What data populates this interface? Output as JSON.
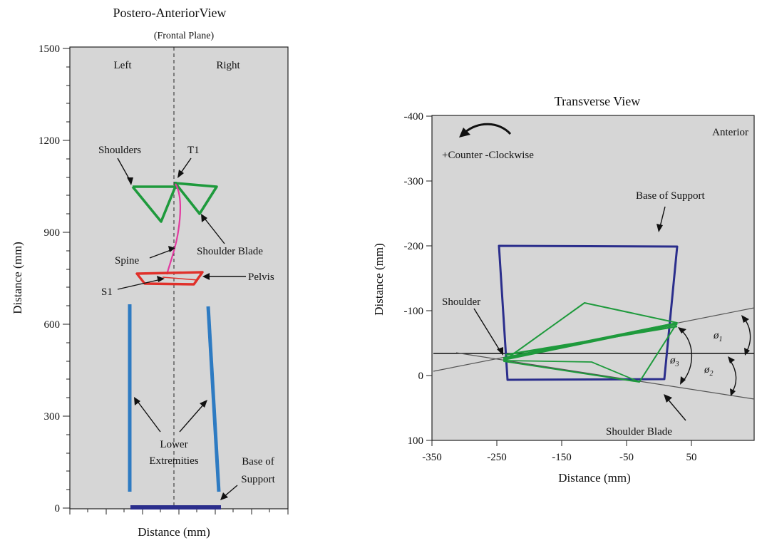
{
  "left_panel": {
    "title": "Postero-AnteriorView",
    "subtitle": "(Frontal Plane)",
    "side_left": "Left",
    "side_right": "Right",
    "y_label": "Distance (mm)",
    "x_label": "Distance (mm)",
    "y_ticks": [
      "1500",
      "1200",
      "900",
      "600",
      "300",
      "0"
    ],
    "labels": {
      "shoulders": "Shoulders",
      "t1": "T1",
      "spine": "Spine",
      "shoulder_blade": "Shoulder Blade",
      "s1": "S1",
      "pelvis": "Pelvis",
      "lower_ext_1": "Lower",
      "lower_ext_2": "Extremities",
      "base_1": "Base of",
      "base_2": "Support"
    }
  },
  "right_panel": {
    "title": "Transverse View",
    "anterior": "Anterior",
    "rotation": "+Counter -Clockwise",
    "base_of_support": "Base of Support",
    "shoulder": "Shoulder",
    "shoulder_blade": "Shoulder Blade",
    "phi": "ø",
    "phi_1_sub": "1",
    "phi_2_sub": "2",
    "phi_3_sub": "3",
    "y_label": "Distance (mm)",
    "x_label": "Distance (mm)",
    "y_ticks": [
      "-400",
      "-300",
      "-200",
      "-100",
      "0",
      "100"
    ],
    "x_ticks": [
      "-350",
      "-250",
      "-150",
      "-50",
      "50"
    ]
  },
  "colors": {
    "plot_bg": "#d6d6d6",
    "green": "#1e9a3c",
    "red": "#e0302a",
    "magenta": "#e23aa0",
    "blue": "#2e7bc2",
    "navy": "#2b2e8c"
  }
}
